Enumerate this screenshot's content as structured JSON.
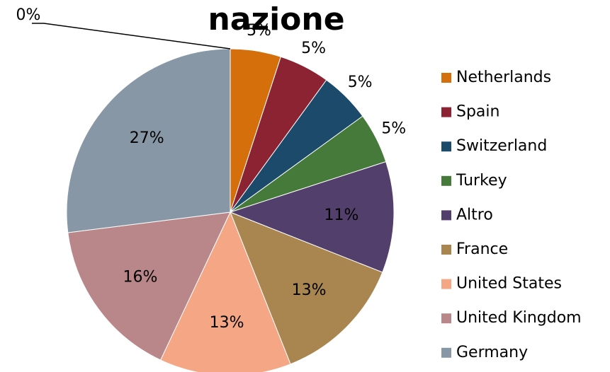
{
  "chart_data": {
    "type": "pie",
    "title": "nazione",
    "categories": [
      "Netherlands",
      "Spain",
      "Switzerland",
      "Turkey",
      "Altro",
      "France",
      "United States",
      "United Kingdom",
      "Germany",
      null
    ],
    "values": [
      5,
      5,
      5,
      5,
      11,
      13,
      13,
      16,
      27,
      0
    ],
    "value_labels": [
      "5%",
      "5%",
      "5%",
      "5%",
      "11%",
      "13%",
      "13%",
      "16%",
      "27%",
      "0%"
    ],
    "colors": [
      "#d46f0c",
      "#8b2332",
      "#1b4a6b",
      "#467a3a",
      "#533f6b",
      "#a98650",
      "#f4a685",
      "#b9868a",
      "#8797a6"
    ],
    "legend": "right"
  }
}
